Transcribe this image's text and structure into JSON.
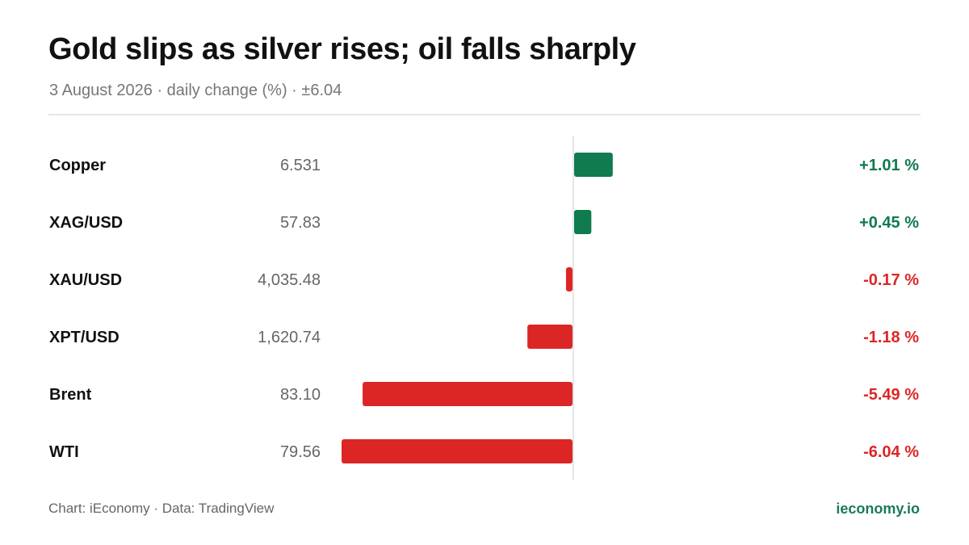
{
  "header": {
    "title": "Gold slips as silver rises; oil falls sharply",
    "subtitle": "3 August 2026 · daily change (%) · ±6.04"
  },
  "footer": {
    "source": "Chart: iEconomy · Data: TradingView",
    "brand": "ieconomy.io"
  },
  "colors": {
    "positive": "#0f7b4f",
    "negative": "#dc2626",
    "label": "#111111",
    "price": "#666666",
    "axis": "#dddddd"
  },
  "chart_data": {
    "type": "bar",
    "orientation": "horizontal",
    "title": "Gold slips as silver rises; oil falls sharply",
    "subtitle": "3 August 2026 · daily change (%) · ±6.04",
    "unit": "%",
    "xlim": [
      -6.04,
      6.04
    ],
    "grid": false,
    "legend": "none",
    "categories": [
      "Copper",
      "XAG/USD",
      "XAU/USD",
      "XPT/USD",
      "Brent",
      "WTI"
    ],
    "prices": [
      "6.531",
      "57.83",
      "4,035.48",
      "1,620.74",
      "83.10",
      "79.56"
    ],
    "values": [
      1.01,
      0.45,
      -0.17,
      -1.18,
      -5.49,
      -6.04
    ],
    "value_labels": [
      "+1.01 %",
      "+0.45 %",
      "-0.17 %",
      "-1.18 %",
      "-5.49 %",
      "-6.04 %"
    ]
  }
}
